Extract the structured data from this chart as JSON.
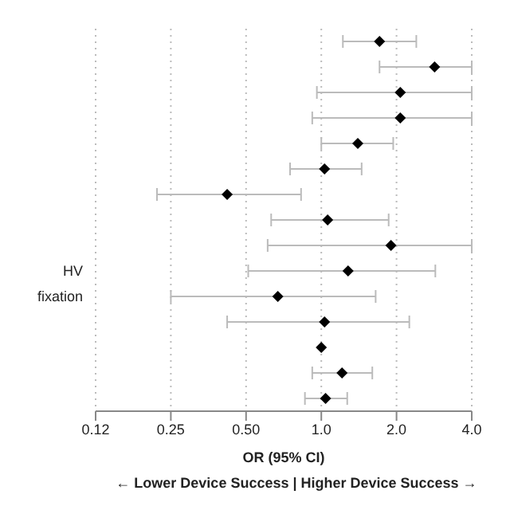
{
  "chart_data": {
    "type": "scatter",
    "orientation": "horizontal",
    "xlabel": "OR (95% CI)",
    "annotations": [
      "← Lower Device Success | Higher Device Success →"
    ],
    "categories": [
      null,
      null,
      null,
      null,
      null,
      null,
      null,
      null,
      null,
      "HV",
      "fixation",
      null,
      null,
      null,
      null
    ],
    "values": [
      1.71,
      2.84,
      2.07,
      2.07,
      1.4,
      1.03,
      0.42,
      1.06,
      1.9,
      1.28,
      0.67,
      1.03,
      1.0,
      1.21,
      1.04
    ],
    "errors": [
      [
        1.22,
        2.4
      ],
      [
        1.71,
        4.0
      ],
      [
        0.96,
        4.0
      ],
      [
        0.92,
        4.0
      ],
      [
        1.0,
        1.94
      ],
      [
        0.75,
        1.45
      ],
      [
        0.22,
        0.83
      ],
      [
        0.63,
        1.86
      ],
      [
        0.61,
        4.0
      ],
      [
        0.51,
        2.86
      ],
      [
        0.25,
        1.65
      ],
      [
        0.42,
        2.25
      ],
      null,
      [
        0.92,
        1.6
      ],
      [
        0.86,
        1.27
      ]
    ],
    "color": "#000000",
    "marker": "diamond",
    "log": "x",
    "xlim": [
      0.125,
      4.0
    ],
    "xticks": [
      {
        "value": 0.125,
        "label": "0.12"
      },
      0.25,
      {
        "value": 0.5,
        "label": "0.50"
      },
      {
        "value": 1,
        "label": "1.0"
      },
      {
        "value": 2,
        "label": "2.0"
      },
      {
        "value": 4,
        "label": "4.0"
      }
    ],
    "grid": "x"
  }
}
